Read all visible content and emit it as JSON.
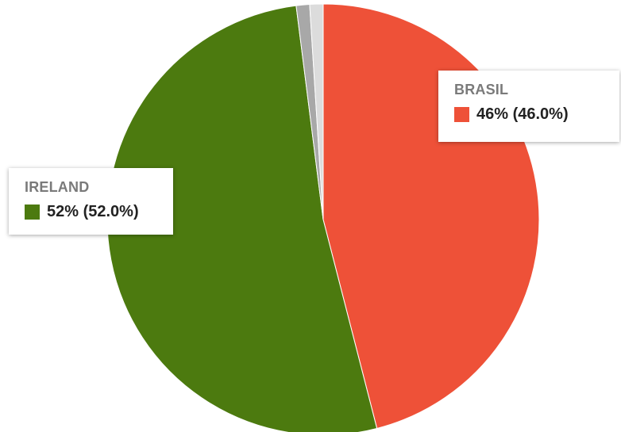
{
  "chart_data": {
    "type": "pie",
    "slices": [
      {
        "label": "BRASIL",
        "value": 46.0,
        "color": "#ee5138"
      },
      {
        "label": "IRELAND",
        "value": 52.0,
        "color": "#4c7a0f"
      },
      {
        "label": "",
        "value": 1.0,
        "color": "#a8a8a8"
      },
      {
        "label": "",
        "value": 1.0,
        "color": "#dcdcdc"
      }
    ],
    "legend": "none",
    "tooltips": [
      {
        "label": "BRASIL",
        "text": "46% (46.0%)",
        "color": "#ee5138"
      },
      {
        "label": "IRELAND",
        "text": "52% (52.0%)",
        "color": "#4c7a0f"
      }
    ]
  }
}
